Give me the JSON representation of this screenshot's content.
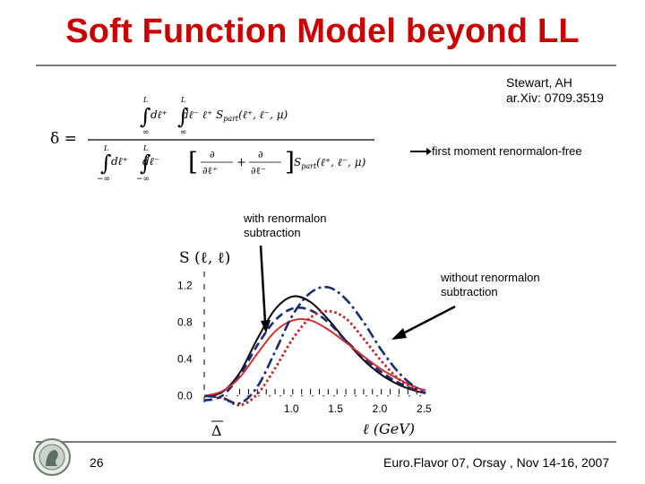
{
  "title": "Soft Function Model beyond LL",
  "reference": {
    "authors": "Stewart, AH",
    "arxiv": "ar.Xiv: 0709.3519"
  },
  "formula": {
    "lhs": "δ =",
    "numerator": {
      "limit_upper": "L",
      "limit_lower": "∞",
      "integrand": "dℓ⁺ ℓ⁺ S",
      "subscript": "part",
      "args": "(ℓ⁺, ℓ⁻, μ)"
    },
    "denominator": {
      "limit_upper": "L",
      "limit_lower": "−∞",
      "partial_plus": "∂ℓ⁺",
      "partial_minus": "∂ℓ⁻",
      "integrand": "S",
      "subscript": "part",
      "args": "(ℓ⁺, ℓ⁻, μ)"
    }
  },
  "annotations": {
    "first_moment": "first moment renormalon-free",
    "with_renormalon_1": "with renormalon",
    "with_renormalon_2": "subtraction",
    "without_renormalon_1": "without renormalon",
    "without_renormalon_2": "subtraction"
  },
  "chart_data": {
    "type": "line",
    "ylabel": "S (ℓ, ℓ)",
    "xlabel": "ℓ (GeV)",
    "delta_label": "Δ",
    "xlim": [
      0.0,
      2.55
    ],
    "ylim": [
      -0.1,
      1.35
    ],
    "x_ticks": [
      "1.0",
      "1.5",
      "2.0",
      "2.5"
    ],
    "x_tick_values": [
      1.0,
      1.5,
      2.0,
      2.5
    ],
    "y_ticks": [
      "0.0",
      "0.4",
      "0.8",
      "1.2"
    ],
    "y_tick_values": [
      0.0,
      0.4,
      0.8,
      1.2
    ],
    "series": [
      {
        "style": "solid",
        "color": "#000000",
        "x": [
          0.0,
          0.2,
          0.4,
          0.6,
          0.8,
          1.0,
          1.2,
          1.4,
          1.6,
          1.8,
          2.0,
          2.2,
          2.4,
          2.5
        ],
        "y": [
          0.0,
          0.04,
          0.25,
          0.62,
          0.94,
          1.08,
          1.02,
          0.83,
          0.6,
          0.39,
          0.23,
          0.12,
          0.05,
          0.03
        ]
      },
      {
        "style": "dashed",
        "color": "#1a2a78",
        "x": [
          0.0,
          0.2,
          0.4,
          0.6,
          0.8,
          1.0,
          1.2,
          1.4,
          1.6,
          1.8,
          2.0,
          2.2,
          2.4,
          2.5
        ],
        "y": [
          -0.05,
          0.0,
          0.22,
          0.55,
          0.82,
          0.95,
          0.93,
          0.8,
          0.6,
          0.42,
          0.26,
          0.14,
          0.06,
          0.03
        ]
      },
      {
        "style": "solid",
        "color": "#d03030",
        "x": [
          0.0,
          0.2,
          0.4,
          0.6,
          0.8,
          1.0,
          1.2,
          1.4,
          1.6,
          1.8,
          2.0,
          2.2,
          2.4,
          2.5
        ],
        "y": [
          0.0,
          0.05,
          0.2,
          0.46,
          0.7,
          0.82,
          0.82,
          0.72,
          0.58,
          0.43,
          0.29,
          0.18,
          0.09,
          0.06
        ]
      },
      {
        "style": "dotted",
        "color": "#c42020",
        "x": [
          0.0,
          0.2,
          0.4,
          0.6,
          0.8,
          1.0,
          1.2,
          1.4,
          1.6,
          1.8,
          2.0,
          2.2,
          2.4,
          2.5
        ],
        "y": [
          0.0,
          -0.02,
          -0.1,
          0.02,
          0.3,
          0.62,
          0.85,
          0.92,
          0.84,
          0.62,
          0.38,
          0.18,
          0.06,
          0.03
        ]
      },
      {
        "style": "dashdot",
        "color": "#1a2a78",
        "x": [
          0.0,
          0.2,
          0.4,
          0.6,
          0.8,
          1.0,
          1.2,
          1.4,
          1.6,
          1.8,
          2.0,
          2.2,
          2.4,
          2.5
        ],
        "y": [
          0.0,
          -0.02,
          -0.08,
          0.1,
          0.48,
          0.88,
          1.12,
          1.18,
          1.05,
          0.8,
          0.5,
          0.25,
          0.08,
          0.03
        ]
      }
    ]
  },
  "footer": {
    "page_number": "26",
    "conference": "Euro.Flavor 07, Orsay , Nov 14-16, 2007"
  },
  "logo_icon": "institute-seal-icon"
}
